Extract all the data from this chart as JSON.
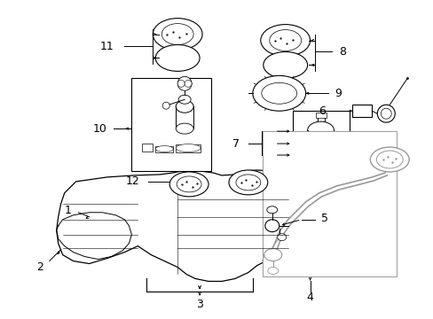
{
  "bg_color": "#ffffff",
  "line_color": "#000000",
  "gray_color": "#999999",
  "fig_width": 4.89,
  "fig_height": 3.6,
  "dpi": 100
}
